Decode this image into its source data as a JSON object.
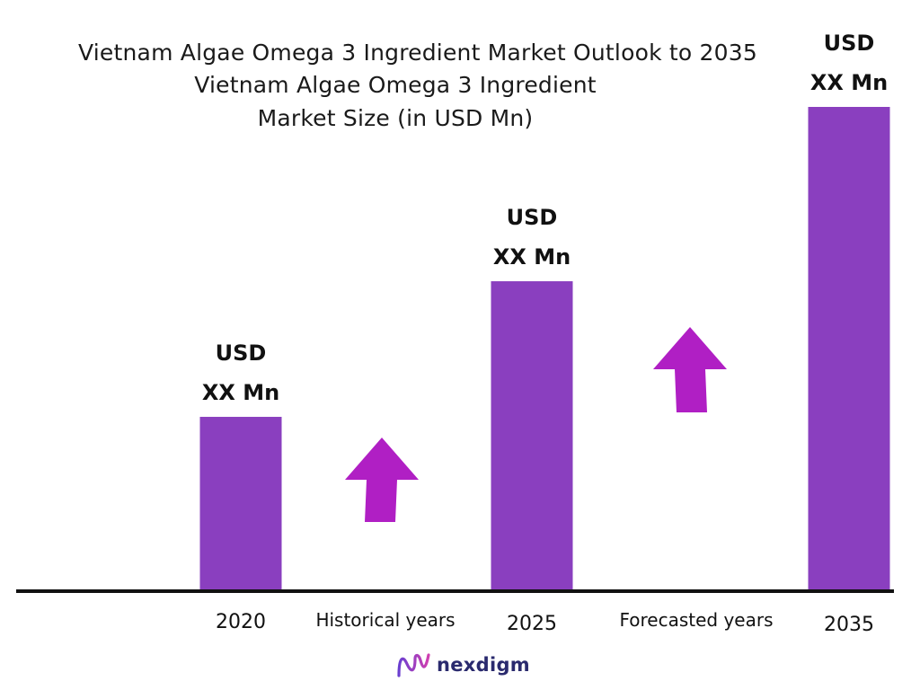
{
  "chart_data": {
    "type": "bar",
    "title": "Vietnam Algae Omega 3 Ingredient Market Outlook to 2035",
    "subtitle_line1": "Vietnam Algae Omega 3 Ingredient",
    "subtitle_line2": "Market Size (in USD Mn)",
    "categories": [
      "2020",
      "2025",
      "2035"
    ],
    "values": [
      36,
      64,
      100
    ],
    "ylim": [
      0,
      100
    ],
    "value_labels": [
      {
        "line1": "USD",
        "line2": "XX Mn"
      },
      {
        "line1": "USD",
        "line2": "XX Mn"
      },
      {
        "line1": "USD",
        "line2": "XX Mn"
      }
    ],
    "period_labels": [
      "Historical years",
      "Forecasted years"
    ],
    "grid": false,
    "bar_color": "#8a3fbf",
    "arrow_color": "#b01fc4",
    "axis_color": "#111111"
  },
  "brand": {
    "name": "nexdigm",
    "icon": "nexdigm-logo-icon",
    "color": "#2a2a6e"
  }
}
